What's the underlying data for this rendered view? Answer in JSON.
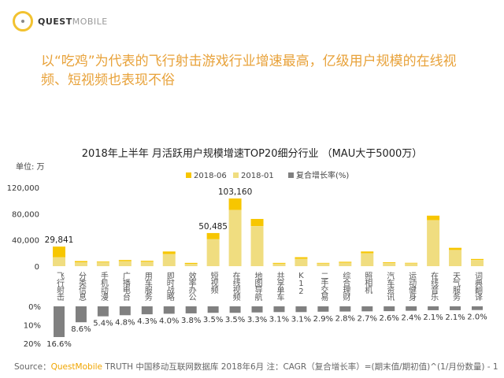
{
  "logo": {
    "bold": "QUEST",
    "light": "MOBILE"
  },
  "headline": "以“吃鸡”为代表的飞行射击游戏行业增速最高，亿级用户规模的在线视频、短视频也表现不俗",
  "source": {
    "prefix": "Source：",
    "brand": "QuestMobile",
    "rest": " TRUTH 中国移动互联网数据库 2018年6月    注：CAGR（复合增长率）=(期末值/期初值)^(1/月份数量) - 1"
  },
  "colors": {
    "jun": "#f7c600",
    "jan": "#f0dd80",
    "cagr": "#808080",
    "headline": "#e8a23a"
  },
  "chart_data": {
    "type": "bar",
    "title": "2018年上半年 月活跃用户规模增速TOP20细分行业 （MAU大于5000万）",
    "unit_label": "单位: 万",
    "legend": [
      "2018-06",
      "2018-01",
      "复合增长率(%)"
    ],
    "legend_position": "top",
    "categories": [
      "飞行射击",
      "分类信息",
      "手机动漫",
      "广播电台",
      "用车服务",
      "即时战略",
      "效率办公",
      "短视频",
      "在线视频",
      "地图导航",
      "共享单车",
      "K12",
      "二手交易",
      "综合理财",
      "照相机",
      "汽车资讯",
      "运动健身",
      "在线音乐",
      "天气服务",
      "词典翻译"
    ],
    "series": [
      {
        "name": "2018-06",
        "values": [
          29841,
          7800,
          7000,
          9400,
          8200,
          22400,
          5000,
          50485,
          103160,
          72000,
          5000,
          13700,
          5000,
          6700,
          22400,
          5900,
          5100,
          77000,
          28000,
          11000
        ]
      },
      {
        "name": "2018-01",
        "values": [
          13800,
          5900,
          6000,
          7500,
          6700,
          18400,
          3500,
          41000,
          85500,
          61000,
          3700,
          11400,
          4000,
          5200,
          19600,
          4700,
          4300,
          70000,
          24700,
          9400
        ]
      },
      {
        "name": "复合增长率(%)",
        "values": [
          16.6,
          8.6,
          5.4,
          4.8,
          4.3,
          4.0,
          3.8,
          3.5,
          3.5,
          3.3,
          3.1,
          3.1,
          2.9,
          2.8,
          2.7,
          2.6,
          2.4,
          2.1,
          2.1,
          2.0
        ]
      }
    ],
    "data_labels": {
      "0": "29,841",
      "7": "50,485",
      "8": "103,160"
    },
    "cagr_labels": [
      "16.6%",
      "8.6%",
      "5.4%",
      "4.8%",
      "4.3%",
      "4.0%",
      "3.8%",
      "3.5%",
      "3.5%",
      "3.3%",
      "3.1%",
      "3.1%",
      "2.9%",
      "2.8%",
      "2.7%",
      "2.6%",
      "2.4%",
      "2.1%",
      "2.1%",
      "2.0%"
    ],
    "y_ticks": [
      "0",
      "40,000",
      "80,000",
      "120,000"
    ],
    "y_tick_values": [
      0,
      40000,
      80000,
      120000
    ],
    "ylim": [
      0,
      120000
    ],
    "pct_ticks": [
      "0%",
      "10%",
      "20%"
    ],
    "pct_tick_values": [
      0,
      10,
      20
    ],
    "pct_lim": [
      0,
      20
    ],
    "grid": false
  }
}
